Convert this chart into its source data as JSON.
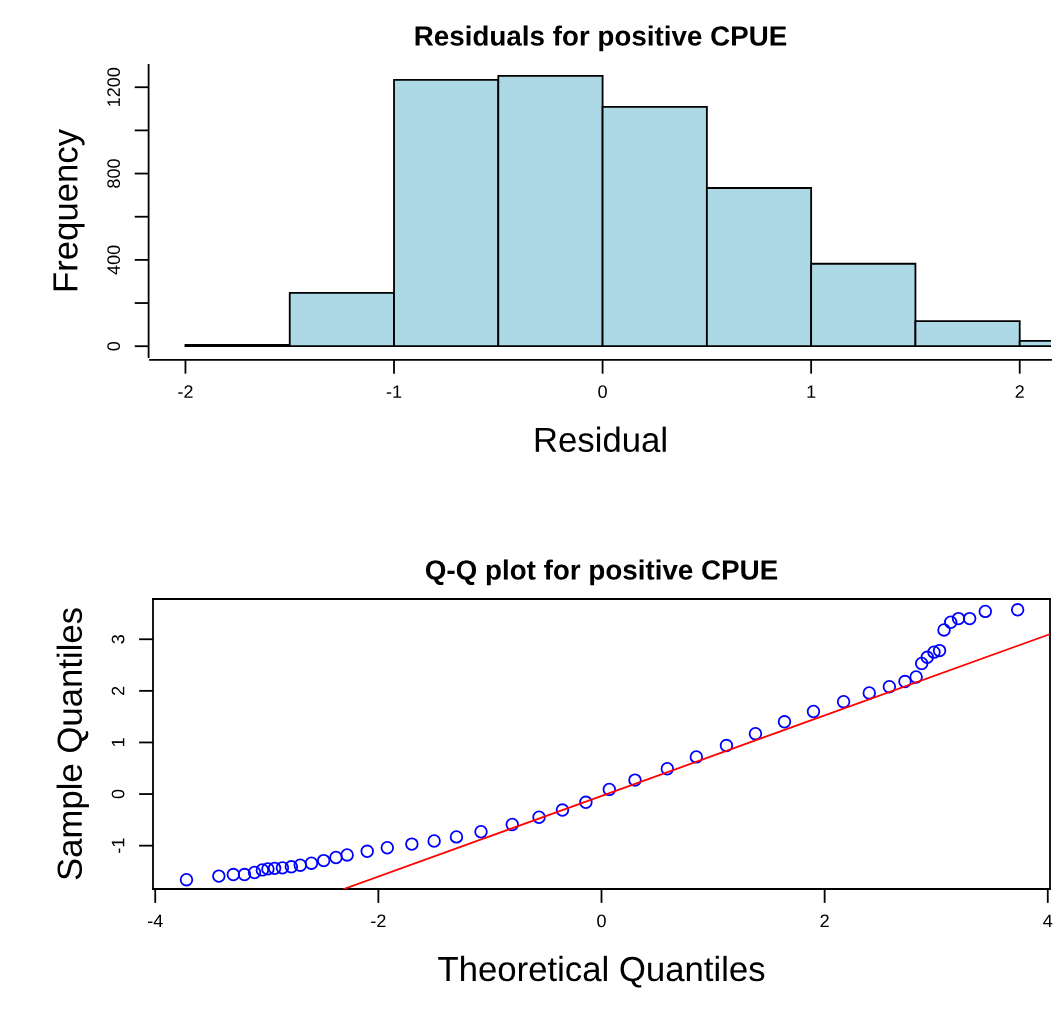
{
  "chart_data": [
    {
      "type": "histogram",
      "title": "Residuals for positive CPUE",
      "xlabel": "Residual",
      "ylabel": "Frequency",
      "color": "#add8e6",
      "bins": [
        -2,
        -1.5,
        -1,
        -0.5,
        0,
        0.5,
        1,
        1.5,
        2,
        2.5
      ],
      "values": [
        6,
        247,
        1234,
        1253,
        1109,
        733,
        382,
        116,
        25
      ],
      "xlim": [
        -2.17,
        2.15
      ],
      "xticks": [
        -2,
        -1,
        0,
        1,
        2
      ],
      "ylim": [
        -50,
        1303
      ],
      "yticks": [
        0,
        {
          "value": 200,
          "label": null
        },
        400,
        {
          "value": 600,
          "label": null
        },
        800,
        {
          "value": 1000,
          "label": null
        },
        1200
      ]
    },
    {
      "type": "scatter",
      "title": "Q-Q plot for positive CPUE",
      "xlabel": "Theoretical Quantiles",
      "ylabel": "Sample Quantiles",
      "series": [
        {
          "type": "scatter",
          "color": "#0000ff",
          "marker": "circle",
          "x": [
            -3.72,
            -3.43,
            -3.3,
            -3.2,
            -3.11,
            -3.04,
            -2.99,
            -2.93,
            -2.86,
            -2.78,
            -2.7,
            -2.6,
            -2.49,
            -2.38,
            -2.28,
            -2.1,
            -1.92,
            -1.7,
            -1.5,
            -1.3,
            -1.08,
            -0.8,
            -0.56,
            -0.35,
            -0.14,
            0.07,
            0.3,
            0.59,
            0.85,
            1.12,
            1.38,
            1.64,
            1.9,
            2.17,
            2.4,
            2.58,
            2.72,
            2.82,
            2.87,
            2.92,
            2.98,
            3.03,
            3.07,
            3.13,
            3.2,
            3.3,
            3.44,
            3.73
          ],
          "values": [
            -1.66,
            -1.59,
            -1.56,
            -1.56,
            -1.52,
            -1.47,
            -1.45,
            -1.44,
            -1.43,
            -1.41,
            -1.38,
            -1.34,
            -1.29,
            -1.23,
            -1.18,
            -1.11,
            -1.04,
            -0.97,
            -0.91,
            -0.83,
            -0.73,
            -0.59,
            -0.45,
            -0.31,
            -0.16,
            0.09,
            0.27,
            0.49,
            0.72,
            0.94,
            1.17,
            1.4,
            1.6,
            1.79,
            1.96,
            2.08,
            2.18,
            2.27,
            2.53,
            2.65,
            2.75,
            2.78,
            3.18,
            3.33,
            3.4,
            3.4,
            3.54,
            3.57
          ]
        },
        {
          "type": "line",
          "color": "#ff0000",
          "marker": "none",
          "x": [
            -2.31,
            4.02
          ],
          "values": [
            -1.84,
            3.1
          ]
        }
      ],
      "xlim": [
        -4.02,
        4.02
      ],
      "xticks": [
        -4,
        -2,
        0,
        2,
        4
      ],
      "ylim": [
        -1.84,
        3.78
      ],
      "yticks": [
        -1,
        0,
        1,
        2,
        3
      ]
    }
  ]
}
